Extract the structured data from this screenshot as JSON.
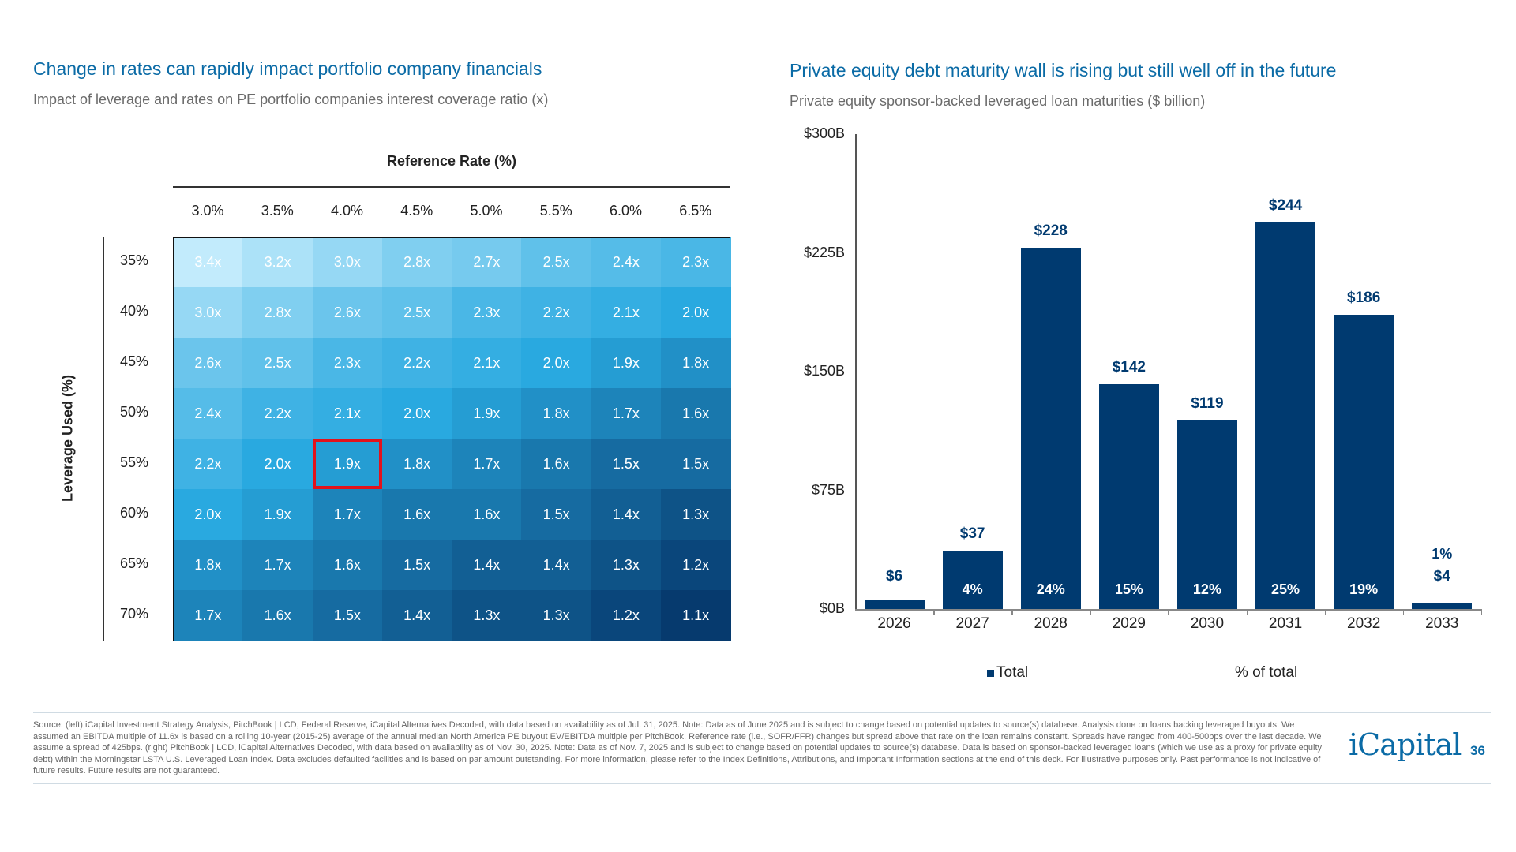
{
  "left": {
    "title": "Change in rates can rapidly impact portfolio company financials",
    "subtitle": "Impact of leverage and rates on PE portfolio companies interest coverage ratio (x)"
  },
  "right": {
    "title": "Private equity debt maturity wall is rising but still well off in the future",
    "subtitle": "Private equity sponsor-backed leveraged loan maturities ($ billion)"
  },
  "chart_data": [
    {
      "type": "heatmap",
      "xlabel": "Reference Rate (%)",
      "ylabel": "Leverage Used (%)",
      "columns": [
        "3.0%",
        "3.5%",
        "4.0%",
        "4.5%",
        "5.0%",
        "5.5%",
        "6.0%",
        "6.5%"
      ],
      "rows": [
        "35%",
        "40%",
        "45%",
        "50%",
        "55%",
        "60%",
        "65%",
        "70%"
      ],
      "values": [
        [
          3.4,
          3.2,
          3.0,
          2.8,
          2.7,
          2.5,
          2.4,
          2.3
        ],
        [
          3.0,
          2.8,
          2.6,
          2.5,
          2.3,
          2.2,
          2.1,
          2.0
        ],
        [
          2.6,
          2.5,
          2.3,
          2.2,
          2.1,
          2.0,
          1.9,
          1.8
        ],
        [
          2.4,
          2.2,
          2.1,
          2.0,
          1.9,
          1.8,
          1.7,
          1.6
        ],
        [
          2.2,
          2.0,
          1.9,
          1.8,
          1.7,
          1.6,
          1.5,
          1.5
        ],
        [
          2.0,
          1.9,
          1.7,
          1.6,
          1.6,
          1.5,
          1.4,
          1.3
        ],
        [
          1.8,
          1.7,
          1.6,
          1.5,
          1.4,
          1.4,
          1.3,
          1.2
        ],
        [
          1.7,
          1.6,
          1.5,
          1.4,
          1.3,
          1.3,
          1.2,
          1.1
        ]
      ],
      "value_suffix": "x",
      "highlight": {
        "row": "55%",
        "column": "4.0%",
        "color": "#e3121b"
      },
      "colors": {
        "low": "#063a6e",
        "mid": "#29a9e0",
        "high": "#c2ebfc"
      }
    },
    {
      "type": "bar",
      "categories": [
        "2026",
        "2027",
        "2028",
        "2029",
        "2030",
        "2031",
        "2032",
        "2033"
      ],
      "values": [
        6,
        37,
        228,
        142,
        119,
        244,
        186,
        4
      ],
      "value_labels": [
        "$6",
        "$37",
        "$228",
        "$142",
        "$119",
        "$244",
        "$186",
        "$4"
      ],
      "pct_of_total": [
        "",
        "4%",
        "24%",
        "15%",
        "12%",
        "25%",
        "19%",
        "1%"
      ],
      "yticks": [
        "$0B",
        "$75B",
        "$150B",
        "$225B",
        "$300B"
      ],
      "ytick_values": [
        0,
        75,
        150,
        225,
        300
      ],
      "ylim": [
        0,
        300
      ],
      "legend": [
        "Total",
        "% of total"
      ],
      "legend_placement": "bottom",
      "bar_color": "#003a70"
    }
  ],
  "footer": {
    "source": "Source: (left) iCapital Investment Strategy Analysis, PitchBook | LCD, Federal Reserve, iCapital Alternatives Decoded, with data based on availability as of Jul. 31, 2025. Note: Data as of June 2025 and is subject to change based on potential updates to source(s) database. Analysis done on loans backing leveraged buyouts. We assumed an EBITDA multiple of 11.6x is based on a rolling 10-year (2015-25) average of the annual median North America PE buyout EV/EBITDA multiple per PitchBook. Reference rate (i.e., SOFR/FFR) changes but spread above that rate on the loan remains constant. Spreads have ranged from 400-500bps over the last decade. We assume a spread of 425bps. (right) PitchBook | LCD, iCapital Alternatives Decoded, with data based on availability as of Nov. 30, 2025. Note: Data as of Nov. 7, 2025 and is subject to change based on potential updates to source(s) database. Data is based on sponsor-backed leveraged loans (which we use as a proxy for private equity debt) within the Morningstar LSTA U.S. Leveraged Loan Index. Data excludes defaulted facilities and is based on par amount outstanding. For more information, please refer to the Index Definitions, Attributions, and Important Information sections at the end of this deck. For illustrative purposes only. Past performance is not indicative of future results. Future results are not guaranteed.",
    "logo": "iCapital",
    "page_number": "36"
  }
}
